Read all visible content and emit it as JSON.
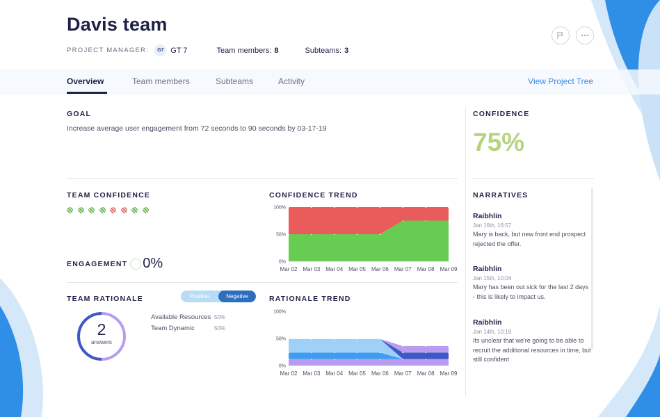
{
  "header": {
    "title": "Davis team",
    "project_manager_label": "PROJECT MANAGER:",
    "pm_avatar": "G7",
    "pm_name": "GT 7",
    "team_members_label": "Team members:",
    "team_members_count": "8",
    "subteams_label": "Subteams:",
    "subteams_count": "3",
    "flag_icon": "flag-icon",
    "more_icon": "ellipsis-icon"
  },
  "tabs": {
    "items": [
      {
        "label": "Overview",
        "active": true
      },
      {
        "label": "Team members",
        "active": false
      },
      {
        "label": "Subteams",
        "active": false
      },
      {
        "label": "Activity",
        "active": false
      }
    ],
    "view_tree": "View Project Tree"
  },
  "goal": {
    "heading": "GOAL",
    "text": "Increase average user engagement from 72 seconds to 90 seconds by 03-17-19"
  },
  "confidence": {
    "heading": "CONFIDENCE",
    "value": "75%",
    "color": "#b6d47f"
  },
  "team_confidence": {
    "heading": "TEAM CONFIDENCE",
    "indicators": [
      "green",
      "green",
      "green",
      "green",
      "red",
      "red",
      "green",
      "green"
    ]
  },
  "engagement": {
    "label": "ENGAGEMENT",
    "value": "0%"
  },
  "team_rationale": {
    "heading": "TEAM RATIONALE",
    "toggle_positive": "Positive",
    "toggle_negative": "Negative",
    "count": "2",
    "count_label": "answers",
    "items": [
      {
        "label": "Available Resources",
        "pct": "50%"
      },
      {
        "label": "Team Dynamic",
        "pct": "50%"
      }
    ]
  },
  "confidence_trend_heading": "CONFIDENCE TREND",
  "rationale_trend_heading": "RATIONALE TREND",
  "chart_data": [
    {
      "type": "area",
      "title": "CONFIDENCE TREND",
      "categories": [
        "Mar 02",
        "Mar 03",
        "Mar 04",
        "Mar 05",
        "Mar 06",
        "Mar 07",
        "Mar 08",
        "Mar 09"
      ],
      "y_ticks": [
        "100%",
        "50%",
        "0%"
      ],
      "ylim": [
        0,
        100
      ],
      "stacked": true,
      "series": [
        {
          "values": [
            50,
            50,
            50,
            50,
            50,
            75,
            75,
            75
          ],
          "color": "#66cc52"
        },
        {
          "values": [
            50,
            50,
            50,
            50,
            50,
            25,
            25,
            25
          ],
          "color": "#ea5b5b"
        }
      ]
    },
    {
      "type": "area",
      "title": "RATIONALE TREND",
      "categories": [
        "Mar 02",
        "Mar 03",
        "Mar 04",
        "Mar 05",
        "Mar 06",
        "Mar 07",
        "Mar 08",
        "Mar 09"
      ],
      "y_ticks": [
        "100%",
        "50%",
        "0%"
      ],
      "ylim": [
        0,
        100
      ],
      "stacked": true,
      "series": [
        {
          "values": [
            12,
            12,
            12,
            12,
            12,
            12,
            12,
            12
          ],
          "color": "#b89cf0"
        },
        {
          "values": [
            12,
            12,
            12,
            12,
            12,
            0,
            0,
            0
          ],
          "color": "#3f9cf0"
        },
        {
          "values": [
            25,
            25,
            25,
            25,
            25,
            0,
            0,
            0
          ],
          "color": "#9fd0f7"
        },
        {
          "values": [
            0,
            0,
            0,
            0,
            0,
            12,
            12,
            12
          ],
          "color": "#3f58c8"
        },
        {
          "values": [
            0,
            0,
            0,
            0,
            0,
            12,
            12,
            12
          ],
          "color": "#b89cf0"
        }
      ]
    }
  ],
  "narratives": {
    "heading": "NARRATIVES",
    "items": [
      {
        "name": "Raibhlin",
        "date": "Jan 16th, 16:57",
        "text": "Mary is back, but new front end prospect rejected the offer."
      },
      {
        "name": "Raibhlin",
        "date": "Jan 15th, 10:04",
        "text": "Mary has been out sick for the last 2 days - this is likely to impact us."
      },
      {
        "name": "Raibhlin",
        "date": "Jan 14th, 10:18",
        "text": "Its unclear that we're going to be able to recruit the additional resources in time, but still confident"
      }
    ]
  }
}
